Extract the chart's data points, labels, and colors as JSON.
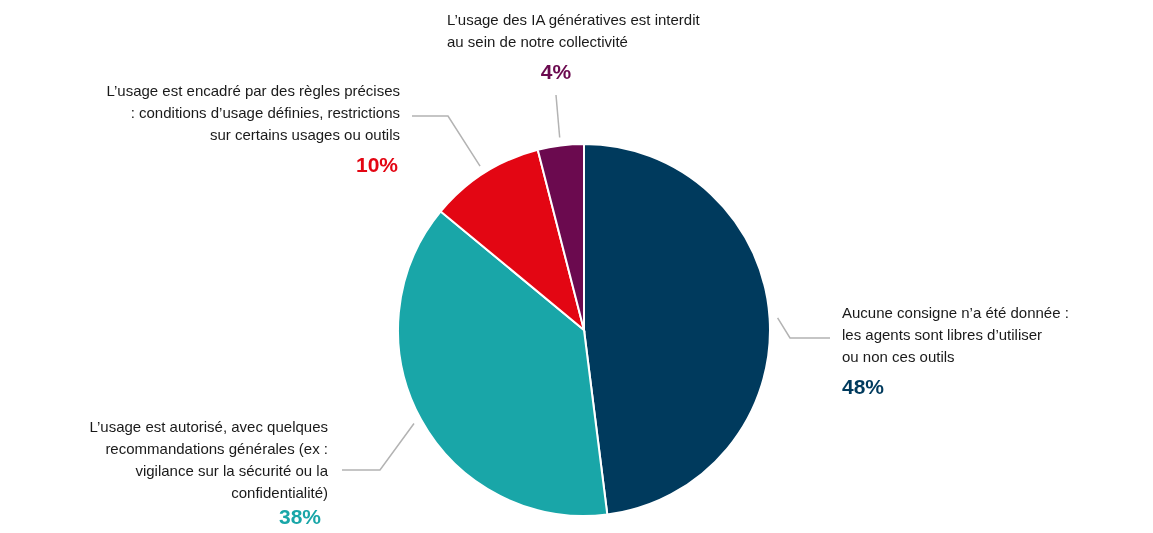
{
  "chart_data": {
    "type": "pie",
    "categories": [
      "Aucune consigne n’a été donnée : les agents sont libres d’utiliser ou non ces outils",
      "L’usage est autorisé, avec quelques recommandations générales (ex : vigilance sur la sécurité ou la confidentialité)",
      "L’usage est encadré par des règles précises : conditions d’usage définies, restrictions sur certains usages ou outils",
      "L’usage des IA génératives est interdit au sein de notre collectivité"
    ],
    "values": [
      48,
      38,
      10,
      4
    ],
    "colors": [
      "#003a5d",
      "#19a6a8",
      "#e30613",
      "#6b0a4f"
    ],
    "value_labels": [
      "48%",
      "38%",
      "10%",
      "4%"
    ]
  }
}
